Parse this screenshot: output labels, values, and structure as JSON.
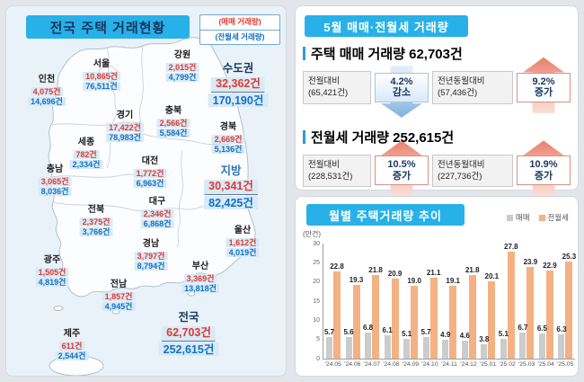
{
  "map_panel": {
    "title": "전국 주택 거래현황",
    "legend": {
      "sale": "(매매 거래량)",
      "rent": "(전월세 거래량)"
    },
    "regions": [
      {
        "key": "seoul",
        "name": "서울",
        "sale": "10,865건",
        "rent": "76,511건",
        "big": false
      },
      {
        "key": "incheon",
        "name": "인천",
        "sale": "4,075건",
        "rent": "14,696건",
        "big": false
      },
      {
        "key": "gangwon",
        "name": "강원",
        "sale": "2,015건",
        "rent": "4,799건",
        "big": false
      },
      {
        "key": "sudogwon",
        "name": "수도권",
        "sale": "32,362건",
        "rent": "170,190건",
        "big": true,
        "accent": "navy"
      },
      {
        "key": "gyeonggi",
        "name": "경기",
        "sale": "17,422건",
        "rent": "78,983건",
        "big": false
      },
      {
        "key": "chungbuk",
        "name": "충북",
        "sale": "2,566건",
        "rent": "5,584건",
        "big": false
      },
      {
        "key": "gyeongbuk",
        "name": "경북",
        "sale": "2,669건",
        "rent": "5,136건",
        "big": false
      },
      {
        "key": "sejong",
        "name": "세종",
        "sale": "782건",
        "rent": "2,334건",
        "big": false
      },
      {
        "key": "daejeon",
        "name": "대전",
        "sale": "1,772건",
        "rent": "6,963건",
        "big": false
      },
      {
        "key": "chungnam",
        "name": "충남",
        "sale": "3,065건",
        "rent": "8,036건",
        "big": false
      },
      {
        "key": "jibang",
        "name": "지방",
        "sale": "30,341건",
        "rent": "82,425건",
        "big": true,
        "accent": "blue"
      },
      {
        "key": "jeonbuk",
        "name": "전북",
        "sale": "2,375건",
        "rent": "3,766건",
        "big": false
      },
      {
        "key": "daegu",
        "name": "대구",
        "sale": "2,346건",
        "rent": "6,868건",
        "big": false
      },
      {
        "key": "ulsan",
        "name": "울산",
        "sale": "1,612건",
        "rent": "4,019건",
        "big": false
      },
      {
        "key": "gwangju",
        "name": "광주",
        "sale": "1,505건",
        "rent": "4,819건",
        "big": false
      },
      {
        "key": "gyeongnam",
        "name": "경남",
        "sale": "3,797건",
        "rent": "8,794건",
        "big": false
      },
      {
        "key": "busan",
        "name": "부산",
        "sale": "3,369건",
        "rent": "13,818건",
        "big": false
      },
      {
        "key": "jeonnam",
        "name": "전남",
        "sale": "1,857건",
        "rent": "4,945건",
        "big": false
      },
      {
        "key": "jeonguk",
        "name": "전국",
        "sale": "62,703건",
        "rent": "252,615건",
        "big": true,
        "accent": "navy"
      },
      {
        "key": "jeju",
        "name": "제주",
        "sale": "611건",
        "rent": "2,544건",
        "big": false
      }
    ]
  },
  "summary_panel": {
    "title": "5월 매매·전월세 거래량",
    "sections": [
      {
        "heading": "주택 매매 거래량 62,703건",
        "items": [
          {
            "label": "전월대비",
            "value": "(65,421건)",
            "pct": "4.2%",
            "verb": "감소",
            "direction": "down"
          },
          {
            "label": "전년동월대비",
            "value": "(57,436건)",
            "pct": "9.2%",
            "verb": "증가",
            "direction": "up"
          }
        ]
      },
      {
        "heading": "전월세 거래량 252,615건",
        "items": [
          {
            "label": "전월대비",
            "value": "(228,531건)",
            "pct": "10.5%",
            "verb": "증가",
            "direction": "up"
          },
          {
            "label": "전년동월대비",
            "value": "(227,736건)",
            "pct": "10.9%",
            "verb": "증가",
            "direction": "up"
          }
        ]
      }
    ]
  },
  "chart_panel": {
    "title": "월별 주택거래량 추이",
    "unit_label": "(만건)"
  },
  "chart_data": {
    "type": "bar",
    "title": "월별 주택거래량 추이",
    "ylabel": "(만건)",
    "categories": [
      "'24.05",
      "'24.06",
      "'24.07",
      "'24.08",
      "'24.09",
      "'24.10",
      "'24.11",
      "'24.12",
      "'25.01",
      "'25.02",
      "'25.03",
      "'25.04",
      "'25.05"
    ],
    "series": [
      {
        "name": "매매",
        "color": "#cccccc",
        "values": [
          5.7,
          5.6,
          6.8,
          6.1,
          5.1,
          5.7,
          4.9,
          4.6,
          3.8,
          5.1,
          6.7,
          6.5,
          6.3
        ]
      },
      {
        "name": "전월세",
        "color": "#f4b183",
        "values": [
          22.8,
          19.3,
          21.8,
          20.9,
          19.0,
          21.1,
          19.1,
          21.8,
          20.1,
          27.8,
          23.9,
          22.9,
          25.3
        ]
      }
    ],
    "ylim": [
      0,
      30
    ],
    "yticks": [
      0,
      5,
      10,
      15,
      20,
      25,
      30
    ],
    "grid": false,
    "legend_position": "top-right"
  },
  "colors": {
    "accent_cyan": "#28b1e8",
    "sale_red": "#e0392f",
    "rent_blue": "#1272c3",
    "navy": "#17375e",
    "label_bg": "#d8eaf7"
  }
}
